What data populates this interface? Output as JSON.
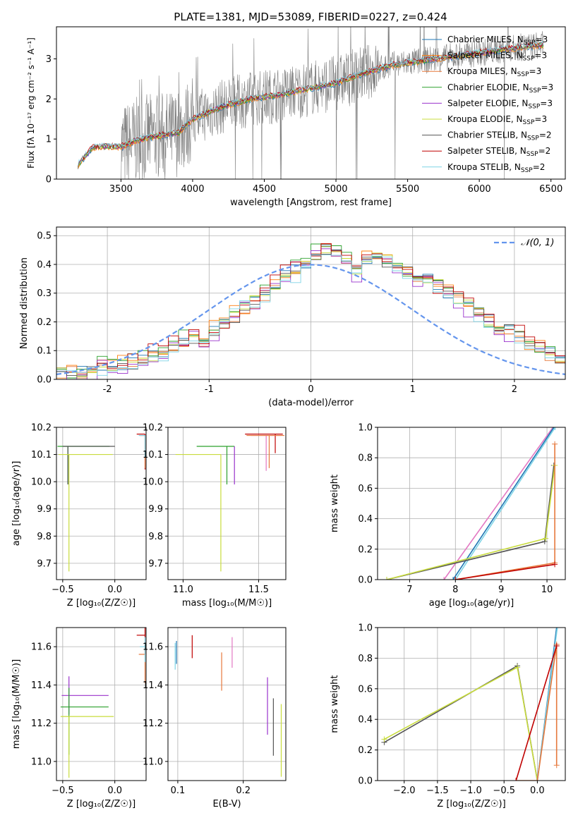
{
  "figure_title": "PLATE=1381, MJD=53089, FIBERID=0227, z=0.424",
  "colors": {
    "Chabrier MILES": "#1f77b4",
    "Salpeter MILES": "#ff7f0e",
    "Kroupa MILES": "#e6783c",
    "Chabrier ELODIE": "#2ca02c",
    "Salpeter ELODIE": "#9932cc",
    "Kroupa ELODIE": "#c8dc3c",
    "Chabrier STELIB": "#555555",
    "Salpeter STELIB": "#c00000",
    "Kroupa STELIB": "#7fd4e6",
    "pink": "#e377c2",
    "normal": "#6495ed",
    "grid": "#b0b0b0",
    "spectrum_gray": "#808080"
  },
  "chart_data": [
    {
      "type": "line",
      "title": "PLATE=1381, MJD=53089, FIBERID=0227, z=0.424",
      "xlabel": "wavelength [Angstrom, rest frame]",
      "ylabel": "Flux [fλ 10⁻¹⁷ erg cm⁻² s⁻¹ A⁻¹]",
      "xlim": [
        3050,
        6600
      ],
      "ylim": [
        0,
        3.8
      ],
      "xticks": [
        3500,
        4000,
        4500,
        5000,
        5500,
        6000,
        6500
      ],
      "yticks": [
        0,
        1,
        2,
        3
      ],
      "grid": false,
      "legend_position": "right",
      "legend": [
        {
          "label": "Chabrier MILES, N",
          "sub": "SSP",
          "tail": "=3",
          "color": "#1f77b4"
        },
        {
          "label": "Salpeter MILES, N",
          "sub": "SSP",
          "tail": "=3",
          "color": "#ff7f0e"
        },
        {
          "label": "Kroupa MILES, N",
          "sub": "SSP",
          "tail": "=3",
          "color": "#e6783c"
        },
        {
          "label": "Chabrier ELODIE, N",
          "sub": "SSP",
          "tail": "=3",
          "color": "#2ca02c"
        },
        {
          "label": "Salpeter ELODIE, N",
          "sub": "SSP",
          "tail": "=3",
          "color": "#9932cc"
        },
        {
          "label": "Kroupa ELODIE, N",
          "sub": "SSP",
          "tail": "=3",
          "color": "#c8dc3c"
        },
        {
          "label": "Chabrier STELIB, N",
          "sub": "SSP",
          "tail": "=2",
          "color": "#555555"
        },
        {
          "label": "Salpeter STELIB, N",
          "sub": "SSP",
          "tail": "=2",
          "color": "#c00000"
        },
        {
          "label": "Kroupa STELIB, N",
          "sub": "SSP",
          "tail": "=2",
          "color": "#7fd4e6"
        }
      ],
      "model_continuum": {
        "x": [
          3200,
          3300,
          3400,
          3500,
          3600,
          3700,
          3800,
          3900,
          4000,
          4200,
          4400,
          4600,
          4800,
          5000,
          5200,
          5400,
          5600,
          5800,
          6000,
          6200,
          6450
        ],
        "y": [
          0.35,
          0.78,
          0.82,
          0.8,
          0.95,
          1.05,
          1.1,
          1.15,
          1.5,
          1.8,
          2.0,
          2.1,
          2.25,
          2.4,
          2.65,
          2.85,
          2.95,
          3.05,
          3.15,
          3.25,
          3.35
        ]
      },
      "data_range": [
        3500,
        6450
      ]
    },
    {
      "type": "histogram",
      "xlabel": "(data-model)/error",
      "ylabel": "Normed distribution",
      "xlim": [
        -2.5,
        2.5
      ],
      "ylim": [
        0,
        0.53
      ],
      "xticks": [
        -2,
        -1,
        0,
        1,
        2
      ],
      "yticks": [
        0.0,
        0.1,
        0.2,
        0.3,
        0.4,
        0.5
      ],
      "grid": true,
      "legend_position": "top-right",
      "legend": [
        {
          "label": "𝒩(0, 1)",
          "color": "#6495ed",
          "style": "dashed"
        }
      ],
      "bin_width": 0.1,
      "bin_start": -2.5,
      "series_values": [
        0.03,
        0.02,
        0.03,
        0.03,
        0.05,
        0.05,
        0.05,
        0.06,
        0.07,
        0.08,
        0.09,
        0.11,
        0.13,
        0.15,
        0.15,
        0.17,
        0.19,
        0.22,
        0.25,
        0.27,
        0.3,
        0.33,
        0.36,
        0.38,
        0.4,
        0.43,
        0.45,
        0.44,
        0.4,
        0.38,
        0.42,
        0.43,
        0.41,
        0.4,
        0.38,
        0.36,
        0.35,
        0.33,
        0.3,
        0.28,
        0.26,
        0.23,
        0.21,
        0.19,
        0.17,
        0.15,
        0.13,
        0.11,
        0.09,
        0.07,
        0.06,
        0.05,
        0.04,
        0.04,
        0.03,
        0.03
      ],
      "series_offsets": [
        0.0,
        0.02,
        -0.02,
        0.03,
        -0.03,
        0.01,
        -0.01,
        0.025,
        -0.025
      ]
    },
    {
      "type": "scatter",
      "xlabel": "Z [log₁₀(Z/Z☉)]",
      "ylabel": "age [log₁₀(age/yr)]",
      "xlim": [
        -0.56,
        0.3
      ],
      "ylim": [
        9.64,
        10.2
      ],
      "xticks": [
        -0.5,
        0.0
      ],
      "xticklabels": [
        "−0.5",
        "0.0"
      ],
      "yticks": [
        9.7,
        9.8,
        9.9,
        10.0,
        10.1,
        10.2
      ],
      "grid": true,
      "points": [
        {
          "x": -0.45,
          "y": 10.13,
          "xerr": [
            0.1,
            0.4
          ],
          "yerr": [
            0.14,
            0.0
          ],
          "color": "#2ca02c"
        },
        {
          "x": -0.45,
          "y": 10.13,
          "xerr": [
            0.05,
            0.45
          ],
          "yerr": [
            0.14,
            0.0
          ],
          "color": "#555555"
        },
        {
          "x": -0.44,
          "y": 10.1,
          "xerr": [
            0.1,
            0.42
          ],
          "yerr": [
            0.43,
            0.0
          ],
          "color": "#c8dc3c"
        },
        {
          "x": 0.29,
          "y": 10.175,
          "xerr": [
            0.08,
            0.0
          ],
          "yerr": [
            0.13,
            0.0
          ],
          "color": "#c00000"
        },
        {
          "x": 0.29,
          "y": 10.17,
          "xerr": [
            0.05,
            0.0
          ],
          "yerr": [
            0.12,
            0.0
          ],
          "color": "#e6783c"
        },
        {
          "x": 0.29,
          "y": 10.17,
          "xerr": [
            0.06,
            0.0
          ],
          "yerr": [
            0.08,
            0.0
          ],
          "color": "#7fd4e6"
        }
      ]
    },
    {
      "type": "scatter",
      "xlabel": "mass [log₁₀(M/M☉)]",
      "ylabel": "",
      "xlim": [
        10.9,
        11.68
      ],
      "ylim": [
        9.64,
        10.2
      ],
      "xticks": [
        11.0,
        11.5
      ],
      "xticklabels": [
        "11.0",
        "11.5"
      ],
      "yticks": [
        9.7,
        9.8,
        9.9,
        10.0,
        10.1,
        10.2
      ],
      "grid": true,
      "points": [
        {
          "x": 11.29,
          "y": 10.13,
          "xerr": [
            0.2,
            0.05
          ],
          "yerr": [
            0.14,
            0.0
          ],
          "color": "#2ca02c"
        },
        {
          "x": 11.25,
          "y": 10.1,
          "xerr": [
            0.3,
            0.0
          ],
          "yerr": [
            0.43,
            0.0
          ],
          "color": "#c8dc3c"
        },
        {
          "x": 11.34,
          "y": 10.13,
          "xerr": [
            0.0,
            0.0
          ],
          "yerr": [
            0.14,
            0.0
          ],
          "color": "#9932cc"
        },
        {
          "x": 11.61,
          "y": 10.175,
          "xerr": [
            0.2,
            0.05
          ],
          "yerr": [
            0.07,
            0.0
          ],
          "color": "#c00000"
        },
        {
          "x": 11.55,
          "y": 10.17,
          "xerr": [
            0.1,
            0.1
          ],
          "yerr": [
            0.13,
            0.0
          ],
          "color": "#e377c2"
        },
        {
          "x": 11.57,
          "y": 10.17,
          "xerr": [
            0.15,
            0.1
          ],
          "yerr": [
            0.12,
            0.0
          ],
          "color": "#e6783c"
        }
      ]
    },
    {
      "type": "line",
      "xlabel": "age [log₁₀(age/yr)]",
      "ylabel": "mass weight",
      "xlim": [
        6.3,
        10.4
      ],
      "ylim": [
        0,
        1.0
      ],
      "xticks": [
        7,
        8,
        9,
        10
      ],
      "xticklabels": [
        "7",
        "8",
        "9",
        "10"
      ],
      "yticks": [
        0.0,
        0.2,
        0.4,
        0.6,
        0.8,
        1.0
      ],
      "grid": true,
      "series": [
        {
          "color": "#e377c2",
          "x": [
            7.75,
            10.13
          ],
          "y": [
            0.0,
            1.0
          ]
        },
        {
          "color": "#1f77b4",
          "x": [
            7.95,
            10.15
          ],
          "y": [
            0.0,
            1.0
          ]
        },
        {
          "color": "#7fd4e6",
          "x": [
            8.0,
            10.18
          ],
          "y": [
            0.0,
            1.0
          ]
        },
        {
          "color": "#555555",
          "x": [
            6.5,
            9.95,
            10.15
          ],
          "y": [
            0.0,
            0.25,
            0.75
          ]
        },
        {
          "color": "#c8dc3c",
          "x": [
            6.5,
            9.97,
            10.17
          ],
          "y": [
            0.0,
            0.27,
            0.75
          ]
        },
        {
          "color": "#e6783c",
          "x": [
            8.0,
            10.17,
            10.17
          ],
          "y": [
            0.0,
            0.11,
            0.89
          ]
        },
        {
          "color": "#c00000",
          "x": [
            8.0,
            10.17
          ],
          "y": [
            0.0,
            0.1
          ]
        }
      ]
    },
    {
      "type": "scatter",
      "xlabel": "Z [log₁₀(Z/Z☉)]",
      "ylabel": "mass [log₁₀(M/M☉)]",
      "xlim": [
        -0.56,
        0.3
      ],
      "ylim": [
        10.9,
        11.7
      ],
      "xticks": [
        -0.5,
        0.0
      ],
      "xticklabels": [
        "−0.5",
        "0.0"
      ],
      "yticks": [
        11.0,
        11.2,
        11.4,
        11.6
      ],
      "grid": true,
      "points": [
        {
          "x": -0.44,
          "y": 11.345,
          "xerr": [
            0.07,
            0.38
          ],
          "yerr": [
            0.1,
            0.1
          ],
          "color": "#9932cc"
        },
        {
          "x": -0.44,
          "y": 11.285,
          "xerr": [
            0.08,
            0.38
          ],
          "yerr": [
            0.25,
            0.1
          ],
          "color": "#2ca02c"
        },
        {
          "x": -0.44,
          "y": 11.235,
          "xerr": [
            0.08,
            0.43
          ],
          "yerr": [
            0.32,
            0.0
          ],
          "color": "#c8dc3c"
        },
        {
          "x": 0.29,
          "y": 11.66,
          "xerr": [
            0.08,
            0.0
          ],
          "yerr": [
            0.1,
            0.05
          ],
          "color": "#c00000"
        },
        {
          "x": 0.29,
          "y": 11.56,
          "xerr": [
            0.06,
            0.0
          ],
          "yerr": [
            0.15,
            0.05
          ],
          "color": "#e6783c"
        },
        {
          "x": 0.29,
          "y": 11.6,
          "xerr": [
            0.05,
            0.0
          ],
          "yerr": [
            0.08,
            0.05
          ],
          "color": "#7fd4e6"
        }
      ]
    },
    {
      "type": "scatter",
      "xlabel": "E(B-V)",
      "ylabel": "",
      "xlim": [
        0.085,
        0.265
      ],
      "ylim": [
        10.9,
        11.7
      ],
      "xticks": [
        0.1,
        0.2
      ],
      "xticklabels": [
        "0.1",
        "0.2"
      ],
      "yticks": [
        11.0,
        11.2,
        11.4,
        11.6
      ],
      "grid": true,
      "points": [
        {
          "x": 0.096,
          "y": 11.55,
          "yerr": [
            0.07,
            0.07
          ],
          "color": "#7fd4e6"
        },
        {
          "x": 0.098,
          "y": 11.57,
          "yerr": [
            0.06,
            0.06
          ],
          "color": "#1f77b4"
        },
        {
          "x": 0.122,
          "y": 11.6,
          "yerr": [
            0.06,
            0.06
          ],
          "color": "#c00000"
        },
        {
          "x": 0.167,
          "y": 11.47,
          "yerr": [
            0.1,
            0.1
          ],
          "color": "#e6783c"
        },
        {
          "x": 0.183,
          "y": 11.57,
          "yerr": [
            0.08,
            0.08
          ],
          "color": "#e377c2"
        },
        {
          "x": 0.237,
          "y": 11.29,
          "yerr": [
            0.15,
            0.15
          ],
          "color": "#9932cc"
        },
        {
          "x": 0.246,
          "y": 11.18,
          "yerr": [
            0.15,
            0.15
          ],
          "color": "#555555"
        },
        {
          "x": 0.258,
          "y": 11.11,
          "yerr": [
            0.19,
            0.19
          ],
          "color": "#c8dc3c"
        }
      ]
    },
    {
      "type": "line",
      "xlabel": "Z [log₁₀(Z/Z☉)]",
      "ylabel": "mass weight",
      "xlim": [
        -2.4,
        0.42
      ],
      "ylim": [
        0,
        1.0
      ],
      "xticks": [
        -2.0,
        -1.5,
        -1.0,
        -0.5,
        0.0
      ],
      "xticklabels": [
        "−2.0",
        "−1.5",
        "−1.0",
        "−0.5",
        "0.0"
      ],
      "yticks": [
        0.0,
        0.2,
        0.4,
        0.6,
        0.8,
        1.0
      ],
      "grid": true,
      "series": [
        {
          "color": "#555555",
          "x": [
            -2.3,
            -0.3,
            0.0
          ],
          "y": [
            0.25,
            0.75,
            0.0
          ]
        },
        {
          "color": "#c8dc3c",
          "x": [
            -2.3,
            -0.3,
            0.0
          ],
          "y": [
            0.27,
            0.74,
            0.0
          ]
        },
        {
          "color": "#1f77b4",
          "x": [
            0.0,
            0.29
          ],
          "y": [
            0.0,
            1.0
          ]
        },
        {
          "color": "#7fd4e6",
          "x": [
            0.0,
            0.3
          ],
          "y": [
            0.0,
            1.0
          ]
        },
        {
          "color": "#e6783c",
          "x": [
            -0.32,
            0.0,
            0.29,
            0.29
          ],
          "y": [
            0.0,
            0.0,
            0.89,
            0.1
          ]
        },
        {
          "color": "#c00000",
          "x": [
            -0.32,
            0.29
          ],
          "y": [
            0.0,
            0.88
          ]
        }
      ]
    }
  ]
}
